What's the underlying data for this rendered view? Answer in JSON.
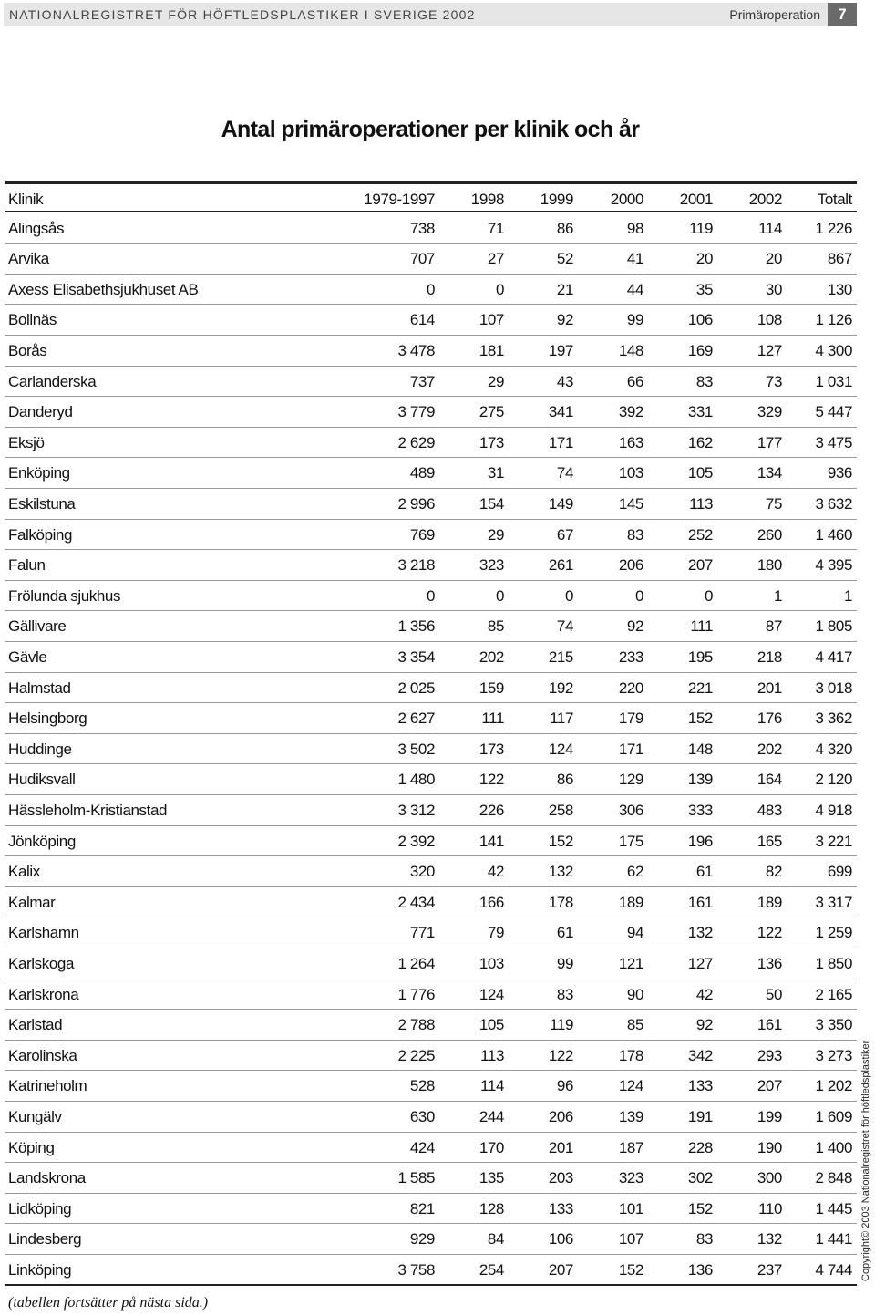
{
  "header": {
    "left": "NATIONALREGISTRET FÖR HÖFTLEDSPLASTIKER I SVERIGE 2002",
    "section": "Primäroperation",
    "page": "7"
  },
  "title": "Antal primäroperationer per klinik och år",
  "table": {
    "columns": [
      "Klinik",
      "1979-1997",
      "1998",
      "1999",
      "2000",
      "2001",
      "2002",
      "Totalt"
    ],
    "rows": [
      [
        "Alingsås",
        "738",
        "71",
        "86",
        "98",
        "119",
        "114",
        "1 226"
      ],
      [
        "Arvika",
        "707",
        "27",
        "52",
        "41",
        "20",
        "20",
        "867"
      ],
      [
        "Axess Elisabethsjukhuset AB",
        "0",
        "0",
        "21",
        "44",
        "35",
        "30",
        "130"
      ],
      [
        "Bollnäs",
        "614",
        "107",
        "92",
        "99",
        "106",
        "108",
        "1 126"
      ],
      [
        "Borås",
        "3 478",
        "181",
        "197",
        "148",
        "169",
        "127",
        "4 300"
      ],
      [
        "Carlanderska",
        "737",
        "29",
        "43",
        "66",
        "83",
        "73",
        "1 031"
      ],
      [
        "Danderyd",
        "3 779",
        "275",
        "341",
        "392",
        "331",
        "329",
        "5 447"
      ],
      [
        "Eksjö",
        "2 629",
        "173",
        "171",
        "163",
        "162",
        "177",
        "3 475"
      ],
      [
        "Enköping",
        "489",
        "31",
        "74",
        "103",
        "105",
        "134",
        "936"
      ],
      [
        "Eskilstuna",
        "2 996",
        "154",
        "149",
        "145",
        "113",
        "75",
        "3 632"
      ],
      [
        "Falköping",
        "769",
        "29",
        "67",
        "83",
        "252",
        "260",
        "1 460"
      ],
      [
        "Falun",
        "3 218",
        "323",
        "261",
        "206",
        "207",
        "180",
        "4 395"
      ],
      [
        "Frölunda sjukhus",
        "0",
        "0",
        "0",
        "0",
        "0",
        "1",
        "1"
      ],
      [
        "Gällivare",
        "1 356",
        "85",
        "74",
        "92",
        "111",
        "87",
        "1 805"
      ],
      [
        "Gävle",
        "3 354",
        "202",
        "215",
        "233",
        "195",
        "218",
        "4 417"
      ],
      [
        "Halmstad",
        "2 025",
        "159",
        "192",
        "220",
        "221",
        "201",
        "3 018"
      ],
      [
        "Helsingborg",
        "2 627",
        "111",
        "117",
        "179",
        "152",
        "176",
        "3 362"
      ],
      [
        "Huddinge",
        "3 502",
        "173",
        "124",
        "171",
        "148",
        "202",
        "4 320"
      ],
      [
        "Hudiksvall",
        "1 480",
        "122",
        "86",
        "129",
        "139",
        "164",
        "2 120"
      ],
      [
        "Hässleholm-Kristianstad",
        "3 312",
        "226",
        "258",
        "306",
        "333",
        "483",
        "4 918"
      ],
      [
        "Jönköping",
        "2 392",
        "141",
        "152",
        "175",
        "196",
        "165",
        "3 221"
      ],
      [
        "Kalix",
        "320",
        "42",
        "132",
        "62",
        "61",
        "82",
        "699"
      ],
      [
        "Kalmar",
        "2 434",
        "166",
        "178",
        "189",
        "161",
        "189",
        "3 317"
      ],
      [
        "Karlshamn",
        "771",
        "79",
        "61",
        "94",
        "132",
        "122",
        "1 259"
      ],
      [
        "Karlskoga",
        "1 264",
        "103",
        "99",
        "121",
        "127",
        "136",
        "1 850"
      ],
      [
        "Karlskrona",
        "1 776",
        "124",
        "83",
        "90",
        "42",
        "50",
        "2 165"
      ],
      [
        "Karlstad",
        "2 788",
        "105",
        "119",
        "85",
        "92",
        "161",
        "3 350"
      ],
      [
        "Karolinska",
        "2 225",
        "113",
        "122",
        "178",
        "342",
        "293",
        "3 273"
      ],
      [
        "Katrineholm",
        "528",
        "114",
        "96",
        "124",
        "133",
        "207",
        "1 202"
      ],
      [
        "Kungälv",
        "630",
        "244",
        "206",
        "139",
        "191",
        "199",
        "1 609"
      ],
      [
        "Köping",
        "424",
        "170",
        "201",
        "187",
        "228",
        "190",
        "1 400"
      ],
      [
        "Landskrona",
        "1 585",
        "135",
        "203",
        "323",
        "302",
        "300",
        "2 848"
      ],
      [
        "Lidköping",
        "821",
        "128",
        "133",
        "101",
        "152",
        "110",
        "1 445"
      ],
      [
        "Lindesberg",
        "929",
        "84",
        "106",
        "107",
        "83",
        "132",
        "1 441"
      ],
      [
        "Linköping",
        "3 758",
        "254",
        "207",
        "152",
        "136",
        "237",
        "4 744"
      ]
    ]
  },
  "footnote": "(tabellen fortsätter på nästa sida.)",
  "copyright": "Copyright© 2003 Nationalregistret för höftledsplastiker"
}
